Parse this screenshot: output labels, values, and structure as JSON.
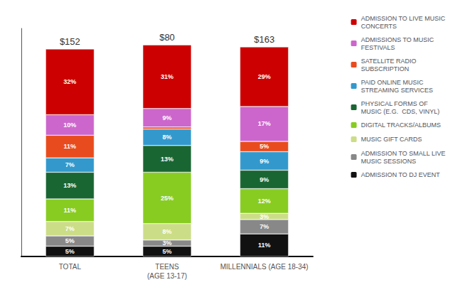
{
  "chart_data": {
    "type": "bar",
    "stacked": true,
    "data_labels": true,
    "grid": false,
    "legend": "upper right",
    "tick_labels": "x",
    "categories": [
      "TOTAL",
      "TEENS\n(AGE 13-17)",
      "MILLENNIALS (AGE 18-34)"
    ],
    "ylim": [
      0,
      111
    ],
    "yticks": [],
    "series": [
      {
        "name": "ADMISSION TO DJ EVENT",
        "color": "#111111",
        "values": [
          5,
          5,
          11
        ],
        "value_labels": [
          "5%",
          "5%",
          "11%"
        ]
      },
      {
        "name": "ADMISSION TO SMALL LIVE\nMUSIC SESSIONS",
        "color": "#888888",
        "values": [
          5,
          3,
          7
        ],
        "value_labels": [
          "5%",
          "3%",
          "7%"
        ]
      },
      {
        "name": "MUSIC GIFT CARDS",
        "color": "#ccdd88",
        "values": [
          7,
          8,
          3
        ],
        "value_labels": [
          "7%",
          "8%",
          "3%"
        ]
      },
      {
        "name": "DIGITAL TRACKS/ALBUMS",
        "color": "#88cc22",
        "values": [
          11,
          25,
          12
        ],
        "value_labels": [
          "11%",
          "25%",
          "12%"
        ]
      },
      {
        "name": "PHYSICAL FORMS OF\nMUSIC (E.G.  CDS, VINYL)",
        "color": "#1a6633",
        "values": [
          13,
          13,
          9
        ],
        "value_labels": [
          "13%",
          "13%",
          "9%"
        ]
      },
      {
        "name": "PAID ONLINE MUSIC\nSTREAMING SERVICES",
        "color": "#3399cc",
        "values": [
          7,
          8,
          9
        ],
        "value_labels": [
          "7%",
          "8%",
          "9%"
        ]
      },
      {
        "name": "SATELLITE RADIO\nSUBSCRIPTION",
        "color": "#e84c1e",
        "values": [
          11,
          1,
          5
        ],
        "value_labels": [
          "11%",
          null,
          "5%"
        ]
      },
      {
        "name": "ADMISSIONS TO MUSIC\nFESTIVALS",
        "color": "#cc66cc",
        "values": [
          10,
          9,
          17
        ],
        "value_labels": [
          "10%",
          "9%",
          "17%"
        ]
      },
      {
        "name": "ADMISSION TO LIVE MUSIC\nCONCERTS",
        "color": "#cc0000",
        "values": [
          32,
          31,
          29
        ],
        "value_labels": [
          "32%",
          "31%",
          "29%"
        ]
      }
    ],
    "annotations": [
      {
        "category": "TOTAL",
        "text": "$152"
      },
      {
        "category": "TEENS\n(AGE 13-17)",
        "text": "$80"
      },
      {
        "category": "MILLENNIALS (AGE 18-34)",
        "text": "$163"
      }
    ]
  }
}
